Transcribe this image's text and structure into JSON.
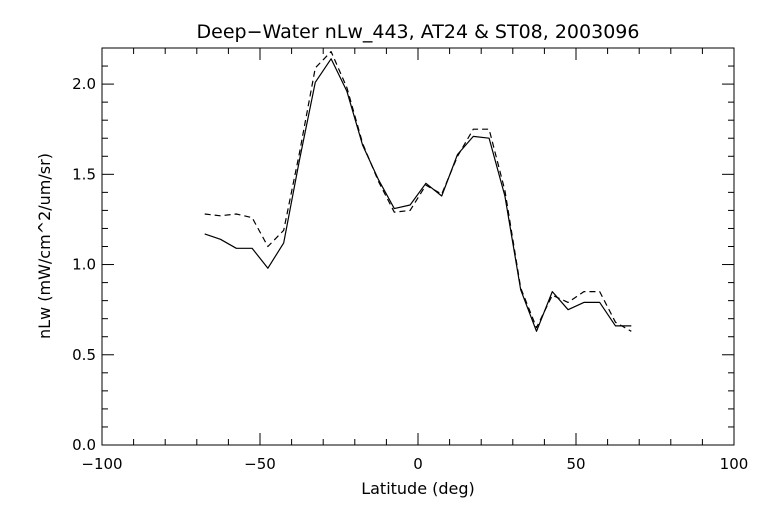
{
  "chart_data": {
    "type": "line",
    "title": "Deep−Water nLw_443, AT24 & ST08, 2003096",
    "xlabel": "Latitude (deg)",
    "ylabel": "nLw (mW/cm^2/um/sr)",
    "xlim": [
      -100,
      100
    ],
    "ylim": [
      0.0,
      2.2
    ],
    "x_ticks": [
      -100,
      -50,
      0,
      50,
      100
    ],
    "x_tick_labels": [
      "−100",
      "−50",
      "0",
      "50",
      "100"
    ],
    "y_ticks": [
      0.0,
      0.5,
      1.0,
      1.5,
      2.0
    ],
    "y_tick_labels": [
      "0.0",
      "0.5",
      "1.0",
      "1.5",
      "2.0"
    ],
    "grid": false,
    "legend": "none",
    "series": [
      {
        "style": "solid",
        "color": "#000000",
        "points": [
          [
            -67.5,
            1.17
          ],
          [
            -62.5,
            1.14
          ],
          [
            -57.5,
            1.09
          ],
          [
            -52.5,
            1.09
          ],
          [
            -47.5,
            0.98
          ],
          [
            -42.5,
            1.12
          ],
          [
            -37.5,
            1.58
          ],
          [
            -32.5,
            2.01
          ],
          [
            -27.5,
            2.14
          ],
          [
            -22.5,
            1.96
          ],
          [
            -17.5,
            1.66
          ],
          [
            -12.5,
            1.47
          ],
          [
            -7.5,
            1.31
          ],
          [
            -2.5,
            1.33
          ],
          [
            2.5,
            1.45
          ],
          [
            7.5,
            1.38
          ],
          [
            12.5,
            1.61
          ],
          [
            17.5,
            1.71
          ],
          [
            22.5,
            1.7
          ],
          [
            27.5,
            1.38
          ],
          [
            32.5,
            0.86
          ],
          [
            37.5,
            0.63
          ],
          [
            42.5,
            0.85
          ],
          [
            47.5,
            0.75
          ],
          [
            52.5,
            0.79
          ],
          [
            57.5,
            0.79
          ],
          [
            62.5,
            0.66
          ],
          [
            67.5,
            0.66
          ]
        ]
      },
      {
        "style": "dashed",
        "color": "#000000",
        "points": [
          [
            -67.5,
            1.28
          ],
          [
            -62.5,
            1.27
          ],
          [
            -57.5,
            1.28
          ],
          [
            -52.5,
            1.26
          ],
          [
            -47.5,
            1.1
          ],
          [
            -42.5,
            1.19
          ],
          [
            -37.5,
            1.62
          ],
          [
            -32.5,
            2.09
          ],
          [
            -27.5,
            2.18
          ],
          [
            -22.5,
            1.98
          ],
          [
            -17.5,
            1.67
          ],
          [
            -12.5,
            1.46
          ],
          [
            -7.5,
            1.29
          ],
          [
            -2.5,
            1.3
          ],
          [
            2.5,
            1.44
          ],
          [
            7.5,
            1.39
          ],
          [
            12.5,
            1.6
          ],
          [
            17.5,
            1.75
          ],
          [
            22.5,
            1.75
          ],
          [
            27.5,
            1.41
          ],
          [
            32.5,
            0.87
          ],
          [
            37.5,
            0.65
          ],
          [
            42.5,
            0.83
          ],
          [
            47.5,
            0.79
          ],
          [
            52.5,
            0.85
          ],
          [
            57.5,
            0.85
          ],
          [
            62.5,
            0.68
          ],
          [
            67.5,
            0.63
          ]
        ]
      }
    ]
  }
}
